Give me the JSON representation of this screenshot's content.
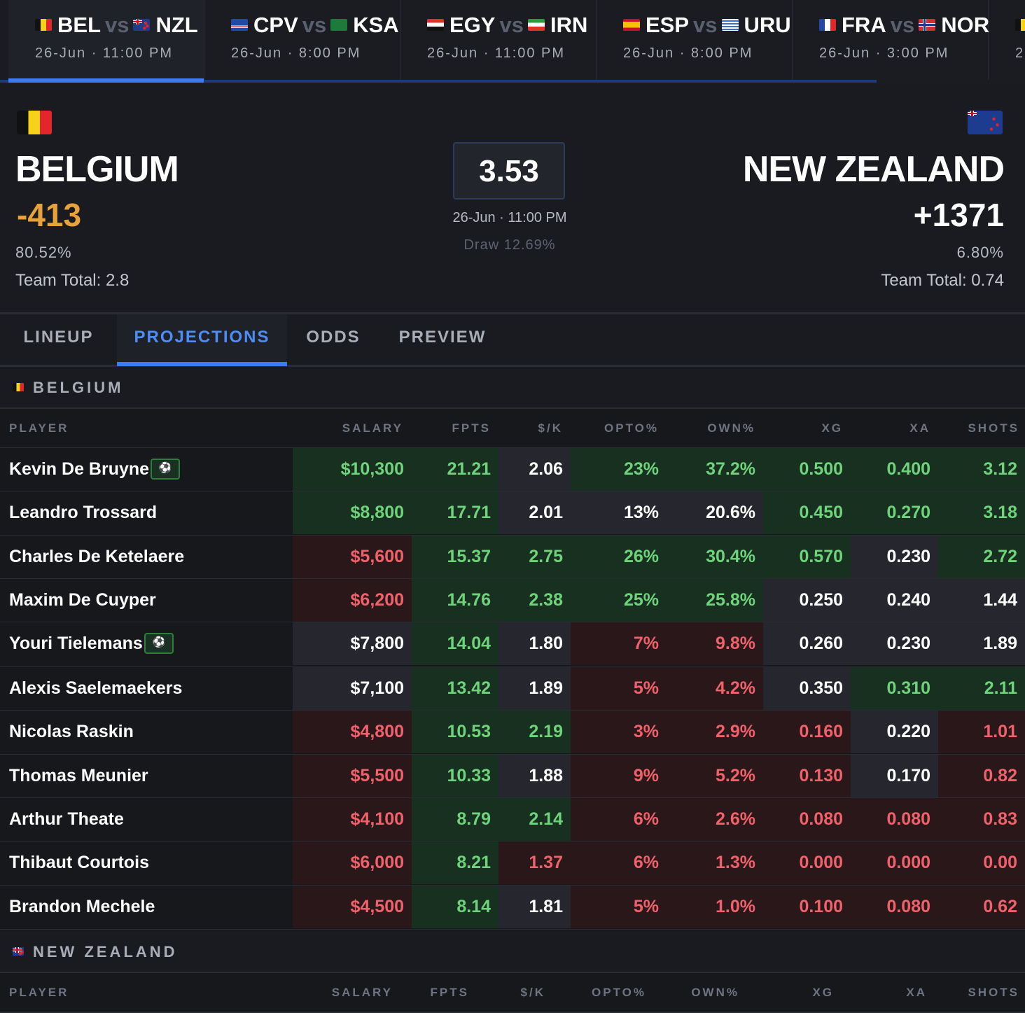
{
  "matches": [
    {
      "home": "BEL",
      "away": "NZL",
      "vs": "vs",
      "time": "26-Jun · 11:00 PM",
      "home_flag": "f-bel",
      "away_flag": "f-nzl"
    },
    {
      "home": "CPV",
      "away": "KSA",
      "vs": "vs",
      "time": "26-Jun · 8:00 PM",
      "home_flag": "f-cpv",
      "away_flag": "f-ksa"
    },
    {
      "home": "EGY",
      "away": "IRN",
      "vs": "vs",
      "time": "26-Jun · 11:00 PM",
      "home_flag": "f-egy",
      "away_flag": "f-irn"
    },
    {
      "home": "ESP",
      "away": "URU",
      "vs": "vs",
      "time": "26-Jun · 8:00 PM",
      "home_flag": "f-esp",
      "away_flag": "f-uru"
    },
    {
      "home": "FRA",
      "away": "NOR",
      "vs": "vs",
      "time": "26-Jun · 3:00 PM",
      "home_flag": "f-fra",
      "away_flag": "f-nor"
    },
    {
      "home": "",
      "away": "",
      "vs": "",
      "time": "2",
      "home_flag": "f-bel",
      "away_flag": ""
    }
  ],
  "game": {
    "home": {
      "name": "BELGIUM",
      "odds": "-413",
      "pct": "80.52%",
      "team_total": "Team Total: 2.8",
      "flag": "belgium-flag"
    },
    "away": {
      "name": "NEW ZEALAND",
      "odds": "+1371",
      "pct": "6.80%",
      "team_total": "Team Total: 0.74",
      "flag": "new-zealand-flag"
    },
    "total": "3.53",
    "time": "26-Jun · 11:00 PM",
    "draw": "Draw 12.69%"
  },
  "tabs": [
    "LINEUP",
    "PROJECTIONS",
    "ODDS",
    "PREVIEW"
  ],
  "active_tab": "PROJECTIONS",
  "colors": {
    "accent": "#3b7cf2",
    "odds_negative": "#e8a23a",
    "good": "#6fd37c",
    "bad": "#f0616b"
  },
  "columns": [
    "PLAYER",
    "SALARY",
    "FPTS",
    "$/K",
    "OPTO%",
    "OWN%",
    "XG",
    "XA",
    "SHOTS"
  ],
  "sections": [
    {
      "team": "BELGIUM",
      "players": [
        {
          "name": "Kevin De Bruyne",
          "badge": true,
          "salary": "$10,300",
          "fpts": "21.21",
          "spk": "2.06",
          "opto": "23%",
          "own": "37.2%",
          "xg": "0.500",
          "xa": "0.400",
          "shots": "3.12",
          "tone": [
            "g",
            "g",
            "n",
            "g",
            "g",
            "g",
            "g",
            "g"
          ]
        },
        {
          "name": "Leandro Trossard",
          "badge": false,
          "salary": "$8,800",
          "fpts": "17.71",
          "spk": "2.01",
          "opto": "13%",
          "own": "20.6%",
          "xg": "0.450",
          "xa": "0.270",
          "shots": "3.18",
          "tone": [
            "g",
            "g",
            "n",
            "n",
            "n",
            "g",
            "g",
            "g"
          ]
        },
        {
          "name": "Charles De Ketelaere",
          "badge": false,
          "salary": "$5,600",
          "fpts": "15.37",
          "spk": "2.75",
          "opto": "26%",
          "own": "30.4%",
          "xg": "0.570",
          "xa": "0.230",
          "shots": "2.72",
          "tone": [
            "r",
            "g",
            "g",
            "g",
            "g",
            "g",
            "n",
            "g"
          ]
        },
        {
          "name": "Maxim De Cuyper",
          "badge": false,
          "salary": "$6,200",
          "fpts": "14.76",
          "spk": "2.38",
          "opto": "25%",
          "own": "25.8%",
          "xg": "0.250",
          "xa": "0.240",
          "shots": "1.44",
          "tone": [
            "r",
            "g",
            "g",
            "g",
            "g",
            "n",
            "n",
            "n"
          ]
        },
        {
          "name": "Youri Tielemans",
          "badge": true,
          "salary": "$7,800",
          "fpts": "14.04",
          "spk": "1.80",
          "opto": "7%",
          "own": "9.8%",
          "xg": "0.260",
          "xa": "0.230",
          "shots": "1.89",
          "tone": [
            "n",
            "g",
            "n",
            "r",
            "r",
            "n",
            "n",
            "n"
          ]
        },
        {
          "name": "Alexis Saelemaekers",
          "badge": false,
          "salary": "$7,100",
          "fpts": "13.42",
          "spk": "1.89",
          "opto": "5%",
          "own": "4.2%",
          "xg": "0.350",
          "xa": "0.310",
          "shots": "2.11",
          "tone": [
            "n",
            "g",
            "n",
            "r",
            "r",
            "n",
            "g",
            "g"
          ]
        },
        {
          "name": "Nicolas Raskin",
          "badge": false,
          "salary": "$4,800",
          "fpts": "10.53",
          "spk": "2.19",
          "opto": "3%",
          "own": "2.9%",
          "xg": "0.160",
          "xa": "0.220",
          "shots": "1.01",
          "tone": [
            "r",
            "g",
            "g",
            "r",
            "r",
            "r",
            "n",
            "r"
          ]
        },
        {
          "name": "Thomas Meunier",
          "badge": false,
          "salary": "$5,500",
          "fpts": "10.33",
          "spk": "1.88",
          "opto": "9%",
          "own": "5.2%",
          "xg": "0.130",
          "xa": "0.170",
          "shots": "0.82",
          "tone": [
            "r",
            "g",
            "n",
            "r",
            "r",
            "r",
            "n",
            "r"
          ]
        },
        {
          "name": "Arthur Theate",
          "badge": false,
          "salary": "$4,100",
          "fpts": "8.79",
          "spk": "2.14",
          "opto": "6%",
          "own": "2.6%",
          "xg": "0.080",
          "xa": "0.080",
          "shots": "0.83",
          "tone": [
            "r",
            "g",
            "g",
            "r",
            "r",
            "r",
            "r",
            "r"
          ]
        },
        {
          "name": "Thibaut Courtois",
          "badge": false,
          "salary": "$6,000",
          "fpts": "8.21",
          "spk": "1.37",
          "opto": "6%",
          "own": "1.3%",
          "xg": "0.000",
          "xa": "0.000",
          "shots": "0.00",
          "tone": [
            "r",
            "g",
            "r",
            "r",
            "r",
            "r",
            "r",
            "r"
          ]
        },
        {
          "name": "Brandon Mechele",
          "badge": false,
          "salary": "$4,500",
          "fpts": "8.14",
          "spk": "1.81",
          "opto": "5%",
          "own": "1.0%",
          "xg": "0.100",
          "xa": "0.080",
          "shots": "0.62",
          "tone": [
            "r",
            "g",
            "n",
            "r",
            "r",
            "r",
            "r",
            "r"
          ]
        }
      ]
    },
    {
      "team": "NEW ZEALAND",
      "players": []
    }
  ]
}
